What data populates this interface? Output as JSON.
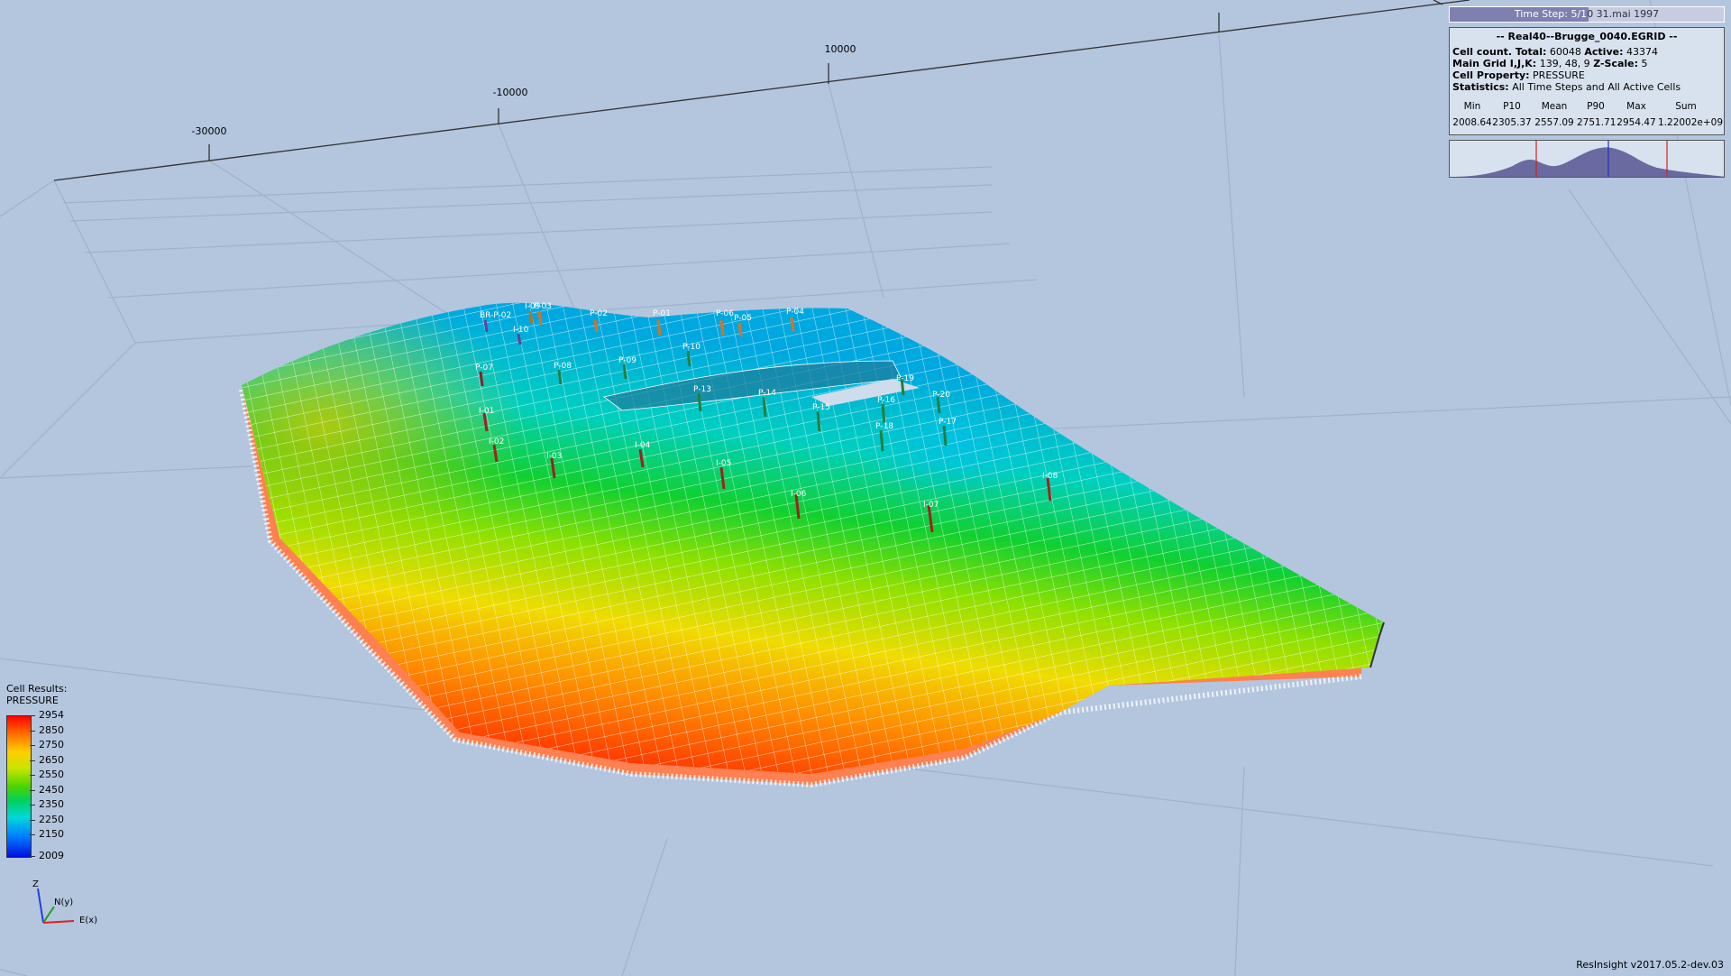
{
  "time_step": {
    "label": "Time Step: 5/1",
    "value": "0 31.mai 1997"
  },
  "info": {
    "title": "-- Real40--Brugge_0040.EGRID --",
    "cell_count_label": "Cell count. Total:",
    "cell_count_total": "60048",
    "active_label": "Active:",
    "active_value": "43374",
    "main_grid_label": "Main Grid I,J,K:",
    "main_grid_value": "139, 48, 9",
    "zscale_label": "Z-Scale:",
    "zscale_value": "5",
    "cell_property_label": "Cell Property:",
    "cell_property_value": "PRESSURE",
    "statistics_label": "Statistics:",
    "statistics_value": "All Time Steps and All Active Cells",
    "stats_headers": [
      "Min",
      "P10",
      "Mean",
      "P90",
      "Max",
      "Sum"
    ],
    "stats_values": [
      "2008.64",
      "2305.37",
      "2557.09",
      "2751.71",
      "2954.47",
      "1.22002e+09"
    ]
  },
  "axis_ticks": [
    "-30000",
    "-10000",
    "10000"
  ],
  "wells": [
    "BR-P-02",
    "P-03",
    "P-02",
    "P-01",
    "P-06",
    "P-05",
    "P-04",
    "P-07",
    "P-08",
    "P-09",
    "P-10",
    "P-13",
    "P-14",
    "P-15",
    "P-16",
    "P-17",
    "P-18",
    "P-19",
    "P-20",
    "I-01",
    "I-02",
    "I-03",
    "I-04",
    "I-05",
    "I-06",
    "I-07",
    "I-08",
    "I-09",
    "I-10"
  ],
  "legend": {
    "title": "Cell Results:",
    "property": "PRESSURE",
    "ticks": [
      "2954",
      "2850",
      "2750",
      "2650",
      "2550",
      "2450",
      "2350",
      "2250",
      "2150",
      "2009"
    ]
  },
  "axes_labels": {
    "z": "Z",
    "y": "N(y)",
    "x": "E(x)"
  },
  "version": "ResInsight v2017.05.2-dev.03",
  "colors": {
    "background": "#b3c6de",
    "time_slider": "#7f7fb0"
  }
}
